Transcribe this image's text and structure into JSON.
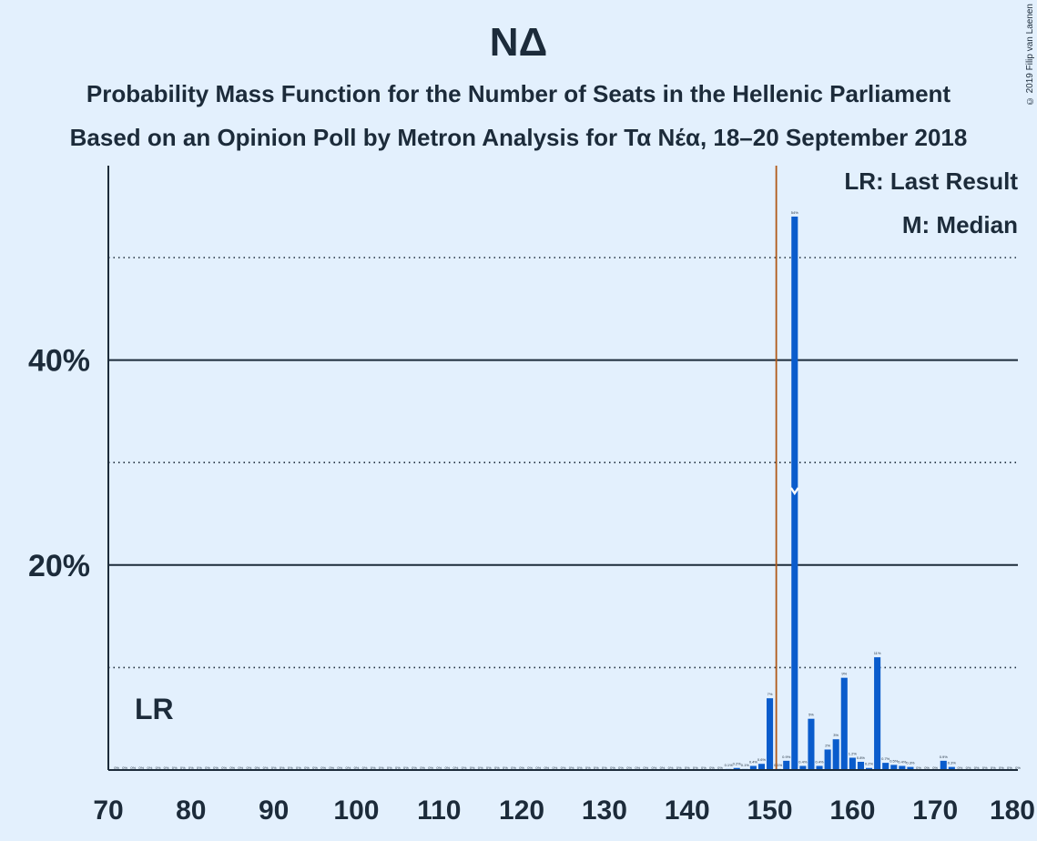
{
  "header": {
    "title": "ΝΔ",
    "subtitle1": "Probability Mass Function for the Number of Seats in the Hellenic Parliament",
    "subtitle2": "Based on an Opinion Poll by Metron Analysis for Τα Νέα, 18–20 September 2018",
    "copyright": "© 2019 Filip van Laenen"
  },
  "legend": {
    "lr": "LR: Last Result",
    "median": "M: Median"
  },
  "colors": {
    "bar": "#0a5ccc",
    "last_result_line": "#b05a18",
    "background": "#e3f0fd",
    "text": "#1c2b3a"
  },
  "chart_data": {
    "type": "bar",
    "title": "ΝΔ",
    "xlim": [
      70,
      180
    ],
    "ylim": [
      0,
      59
    ],
    "x_ticks": [
      70,
      80,
      90,
      100,
      110,
      120,
      130,
      140,
      150,
      160,
      170,
      180
    ],
    "y_ticks_labeled": [
      {
        "value": 20,
        "label": "20%"
      },
      {
        "value": 40,
        "label": "40%"
      }
    ],
    "y_gridlines_solid": [
      20,
      40
    ],
    "y_gridlines_dotted": [
      10,
      30,
      50
    ],
    "last_result": 151,
    "last_result_label": "LR",
    "median": 153,
    "bars": [
      {
        "x": 145,
        "value": 0.1,
        "label": "0.1%"
      },
      {
        "x": 146,
        "value": 0.2,
        "label": "0.2%"
      },
      {
        "x": 147,
        "value": 0.1,
        "label": "0.1%"
      },
      {
        "x": 148,
        "value": 0.4,
        "label": "0.4%"
      },
      {
        "x": 149,
        "value": 0.6,
        "label": "0.6%"
      },
      {
        "x": 150,
        "value": 7,
        "label": "7%"
      },
      {
        "x": 151,
        "value": 0.1,
        "label": "0.1%"
      },
      {
        "x": 152,
        "value": 0.9,
        "label": "0.9%"
      },
      {
        "x": 153,
        "value": 54,
        "label": "54%"
      },
      {
        "x": 154,
        "value": 0.4,
        "label": "0.4%"
      },
      {
        "x": 155,
        "value": 5,
        "label": "5%"
      },
      {
        "x": 156,
        "value": 0.4,
        "label": "0.4%"
      },
      {
        "x": 157,
        "value": 2,
        "label": "2%"
      },
      {
        "x": 158,
        "value": 3,
        "label": "3%"
      },
      {
        "x": 159,
        "value": 9,
        "label": "9%"
      },
      {
        "x": 160,
        "value": 1.2,
        "label": "1.2%"
      },
      {
        "x": 161,
        "value": 0.8,
        "label": "0.8%"
      },
      {
        "x": 162,
        "value": 0.2,
        "label": "0.2%"
      },
      {
        "x": 163,
        "value": 11,
        "label": "11%"
      },
      {
        "x": 164,
        "value": 0.7,
        "label": "0.7%"
      },
      {
        "x": 165,
        "value": 0.5,
        "label": "0.5%"
      },
      {
        "x": 166,
        "value": 0.4,
        "label": "0.4%"
      },
      {
        "x": 167,
        "value": 0.3,
        "label": "0.3%"
      },
      {
        "x": 171,
        "value": 0.9,
        "label": "0.9%"
      },
      {
        "x": 172,
        "value": 0.3,
        "label": "0.3%"
      }
    ],
    "zero_label": "0%"
  }
}
